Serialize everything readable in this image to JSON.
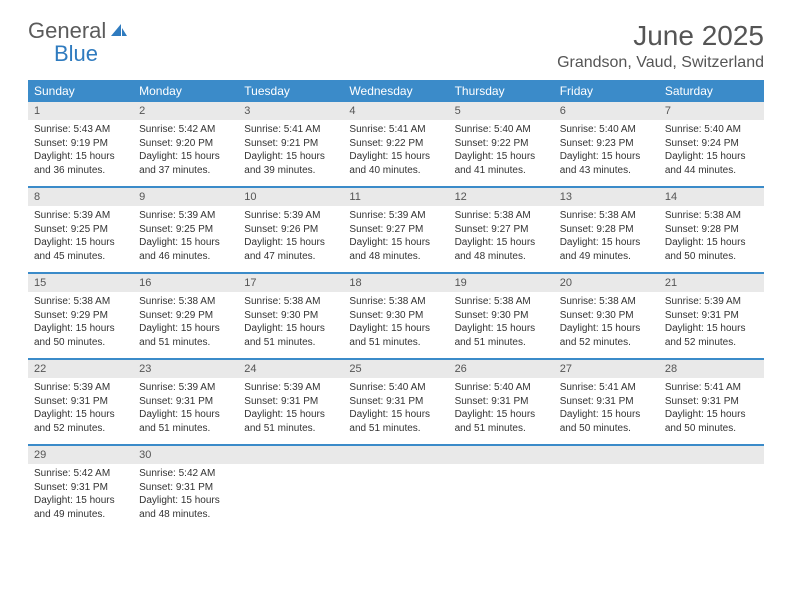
{
  "logo": {
    "word1": "General",
    "word2": "Blue"
  },
  "title": "June 2025",
  "location": "Grandson, Vaud, Switzerland",
  "colors": {
    "header_bg": "#3b8bc9",
    "header_text": "#ffffff",
    "daynum_bg": "#e9e9e9",
    "border": "#3b8bc9",
    "logo_gray": "#5b5b5b",
    "logo_blue": "#2f7bbf"
  },
  "weekdays": [
    "Sunday",
    "Monday",
    "Tuesday",
    "Wednesday",
    "Thursday",
    "Friday",
    "Saturday"
  ],
  "days": [
    {
      "n": "1",
      "sunrise": "5:43 AM",
      "sunset": "9:19 PM",
      "dlh": "15",
      "dlm": "36"
    },
    {
      "n": "2",
      "sunrise": "5:42 AM",
      "sunset": "9:20 PM",
      "dlh": "15",
      "dlm": "37"
    },
    {
      "n": "3",
      "sunrise": "5:41 AM",
      "sunset": "9:21 PM",
      "dlh": "15",
      "dlm": "39"
    },
    {
      "n": "4",
      "sunrise": "5:41 AM",
      "sunset": "9:22 PM",
      "dlh": "15",
      "dlm": "40"
    },
    {
      "n": "5",
      "sunrise": "5:40 AM",
      "sunset": "9:22 PM",
      "dlh": "15",
      "dlm": "41"
    },
    {
      "n": "6",
      "sunrise": "5:40 AM",
      "sunset": "9:23 PM",
      "dlh": "15",
      "dlm": "43"
    },
    {
      "n": "7",
      "sunrise": "5:40 AM",
      "sunset": "9:24 PM",
      "dlh": "15",
      "dlm": "44"
    },
    {
      "n": "8",
      "sunrise": "5:39 AM",
      "sunset": "9:25 PM",
      "dlh": "15",
      "dlm": "45"
    },
    {
      "n": "9",
      "sunrise": "5:39 AM",
      "sunset": "9:25 PM",
      "dlh": "15",
      "dlm": "46"
    },
    {
      "n": "10",
      "sunrise": "5:39 AM",
      "sunset": "9:26 PM",
      "dlh": "15",
      "dlm": "47"
    },
    {
      "n": "11",
      "sunrise": "5:39 AM",
      "sunset": "9:27 PM",
      "dlh": "15",
      "dlm": "48"
    },
    {
      "n": "12",
      "sunrise": "5:38 AM",
      "sunset": "9:27 PM",
      "dlh": "15",
      "dlm": "48"
    },
    {
      "n": "13",
      "sunrise": "5:38 AM",
      "sunset": "9:28 PM",
      "dlh": "15",
      "dlm": "49"
    },
    {
      "n": "14",
      "sunrise": "5:38 AM",
      "sunset": "9:28 PM",
      "dlh": "15",
      "dlm": "50"
    },
    {
      "n": "15",
      "sunrise": "5:38 AM",
      "sunset": "9:29 PM",
      "dlh": "15",
      "dlm": "50"
    },
    {
      "n": "16",
      "sunrise": "5:38 AM",
      "sunset": "9:29 PM",
      "dlh": "15",
      "dlm": "51"
    },
    {
      "n": "17",
      "sunrise": "5:38 AM",
      "sunset": "9:30 PM",
      "dlh": "15",
      "dlm": "51"
    },
    {
      "n": "18",
      "sunrise": "5:38 AM",
      "sunset": "9:30 PM",
      "dlh": "15",
      "dlm": "51"
    },
    {
      "n": "19",
      "sunrise": "5:38 AM",
      "sunset": "9:30 PM",
      "dlh": "15",
      "dlm": "51"
    },
    {
      "n": "20",
      "sunrise": "5:38 AM",
      "sunset": "9:30 PM",
      "dlh": "15",
      "dlm": "52"
    },
    {
      "n": "21",
      "sunrise": "5:39 AM",
      "sunset": "9:31 PM",
      "dlh": "15",
      "dlm": "52"
    },
    {
      "n": "22",
      "sunrise": "5:39 AM",
      "sunset": "9:31 PM",
      "dlh": "15",
      "dlm": "52"
    },
    {
      "n": "23",
      "sunrise": "5:39 AM",
      "sunset": "9:31 PM",
      "dlh": "15",
      "dlm": "51"
    },
    {
      "n": "24",
      "sunrise": "5:39 AM",
      "sunset": "9:31 PM",
      "dlh": "15",
      "dlm": "51"
    },
    {
      "n": "25",
      "sunrise": "5:40 AM",
      "sunset": "9:31 PM",
      "dlh": "15",
      "dlm": "51"
    },
    {
      "n": "26",
      "sunrise": "5:40 AM",
      "sunset": "9:31 PM",
      "dlh": "15",
      "dlm": "51"
    },
    {
      "n": "27",
      "sunrise": "5:41 AM",
      "sunset": "9:31 PM",
      "dlh": "15",
      "dlm": "50"
    },
    {
      "n": "28",
      "sunrise": "5:41 AM",
      "sunset": "9:31 PM",
      "dlh": "15",
      "dlm": "50"
    },
    {
      "n": "29",
      "sunrise": "5:42 AM",
      "sunset": "9:31 PM",
      "dlh": "15",
      "dlm": "49"
    },
    {
      "n": "30",
      "sunrise": "5:42 AM",
      "sunset": "9:31 PM",
      "dlh": "15",
      "dlm": "48"
    }
  ],
  "labels": {
    "sunrise": "Sunrise:",
    "sunset": "Sunset:",
    "daylight_prefix": "Daylight:",
    "hours_word": "hours",
    "and_word": "and",
    "minutes_word": "minutes."
  }
}
